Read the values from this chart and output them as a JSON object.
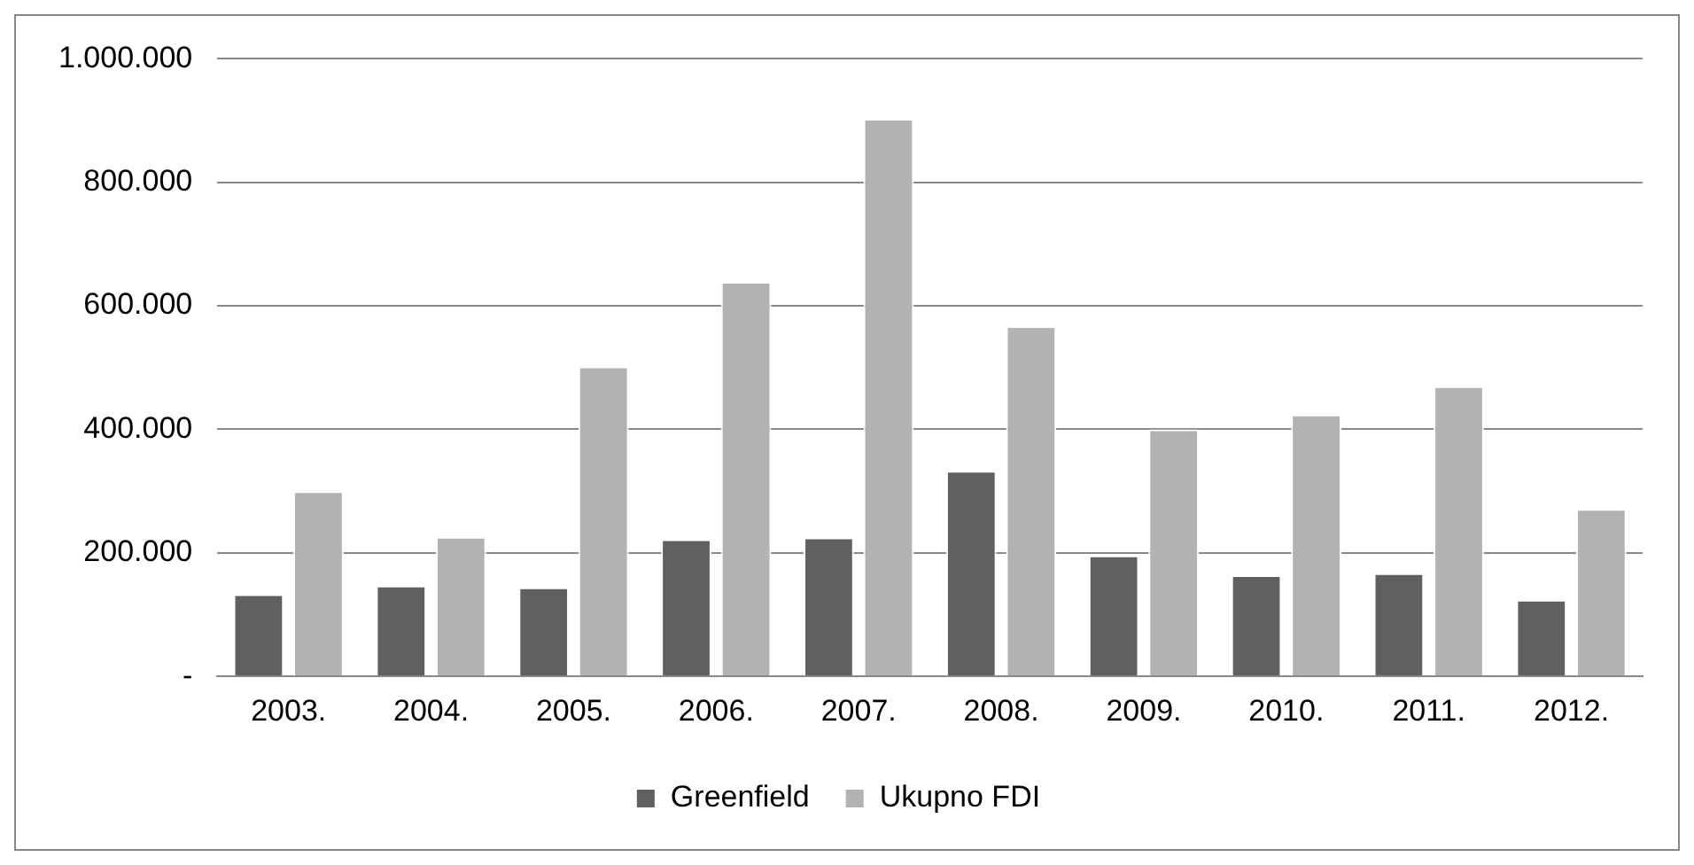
{
  "chart_data": {
    "type": "bar",
    "categories": [
      "2003.",
      "2004.",
      "2005.",
      "2006.",
      "2007.",
      "2008.",
      "2009.",
      "2010.",
      "2011.",
      "2012."
    ],
    "series": [
      {
        "name": "Greenfield",
        "color": "#606060",
        "values": [
          133000,
          147000,
          144000,
          222000,
          225000,
          333000,
          196000,
          164000,
          167000,
          124000
        ]
      },
      {
        "name": "Ukupno FDI",
        "color": "#b2b2b2",
        "values": [
          300000,
          226000,
          502000,
          639000,
          903000,
          567000,
          400000,
          424000,
          470000,
          271000
        ]
      }
    ],
    "ylim": [
      0,
      1000000
    ],
    "yticks": [
      {
        "value": 0,
        "label": "-"
      },
      {
        "value": 200000,
        "label": "200.000"
      },
      {
        "value": 400000,
        "label": "400.000"
      },
      {
        "value": 600000,
        "label": "600.000"
      },
      {
        "value": 800000,
        "label": "800.000"
      },
      {
        "value": 1000000,
        "label": "1.000.000"
      }
    ],
    "grid": "y",
    "legend": "bottom"
  }
}
